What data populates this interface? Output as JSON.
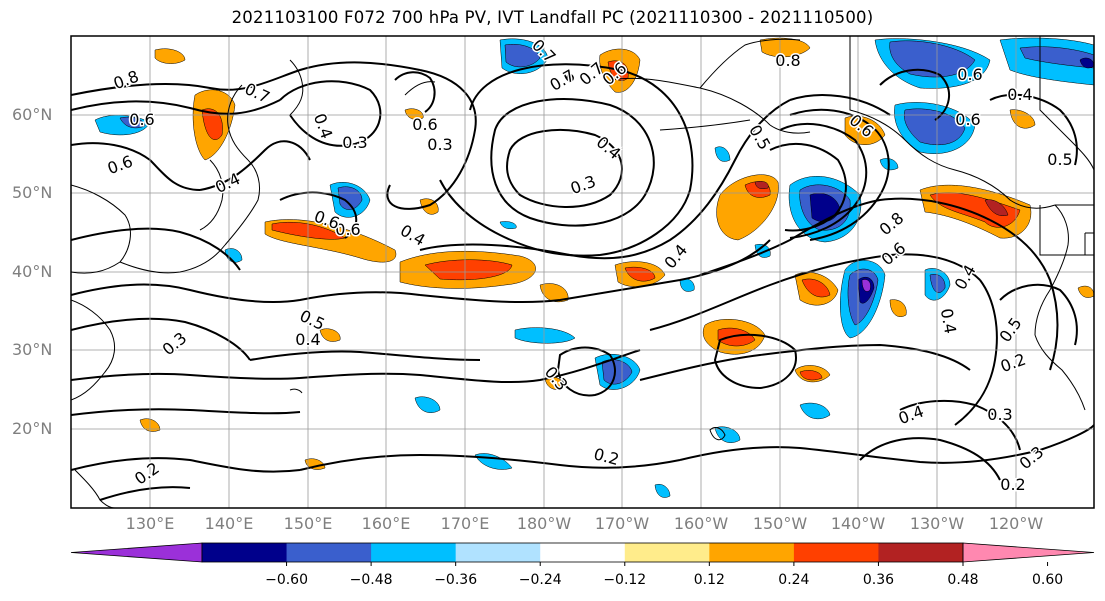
{
  "title": "2021103100 F072 700 hPa PV, IVT Landfall PC (2021110300 - 2021110500)",
  "lat_labels": [
    "60°N",
    "50°N",
    "40°N",
    "30°N",
    "20°N"
  ],
  "lon_labels": [
    "130°E",
    "140°E",
    "150°E",
    "160°E",
    "170°E",
    "180°W",
    "170°W",
    "160°W",
    "150°W",
    "140°W",
    "130°W",
    "120°W"
  ],
  "colorbar": {
    "colors": [
      "#9b30d9",
      "#00008b",
      "#3a5fcd",
      "#00bfff",
      "#b0e2ff",
      "#ffffff",
      "#ffec8b",
      "#ffa500",
      "#ff4000",
      "#b22222",
      "#ff88b0"
    ],
    "tick_labels": [
      "−0.60",
      "−0.48",
      "−0.36",
      "−0.24",
      "−0.12",
      "0.12",
      "0.24",
      "0.36",
      "0.48",
      "0.60"
    ]
  },
  "contour_labels": [
    "0.8",
    "0.7",
    "0.6",
    "0.4",
    "0.3",
    "0.6",
    "0.7",
    "0.6",
    "0.7",
    "0.8",
    "0.6",
    "0.4",
    "0.3",
    "0.4",
    "0.3",
    "0.6",
    "0.4",
    "0.6",
    "0.5",
    "0.4",
    "0.3",
    "0.5",
    "0.4",
    "0.6",
    "0.6",
    "0.8",
    "0.6",
    "0.4",
    "0.5",
    "0.3",
    "0.4",
    "0.3",
    "0.2",
    "0.4",
    "0.3",
    "0.2",
    "0.3",
    "0.2",
    "0.6",
    "0.4",
    "0.5",
    "0.2",
    "0.7",
    "0.6"
  ]
}
